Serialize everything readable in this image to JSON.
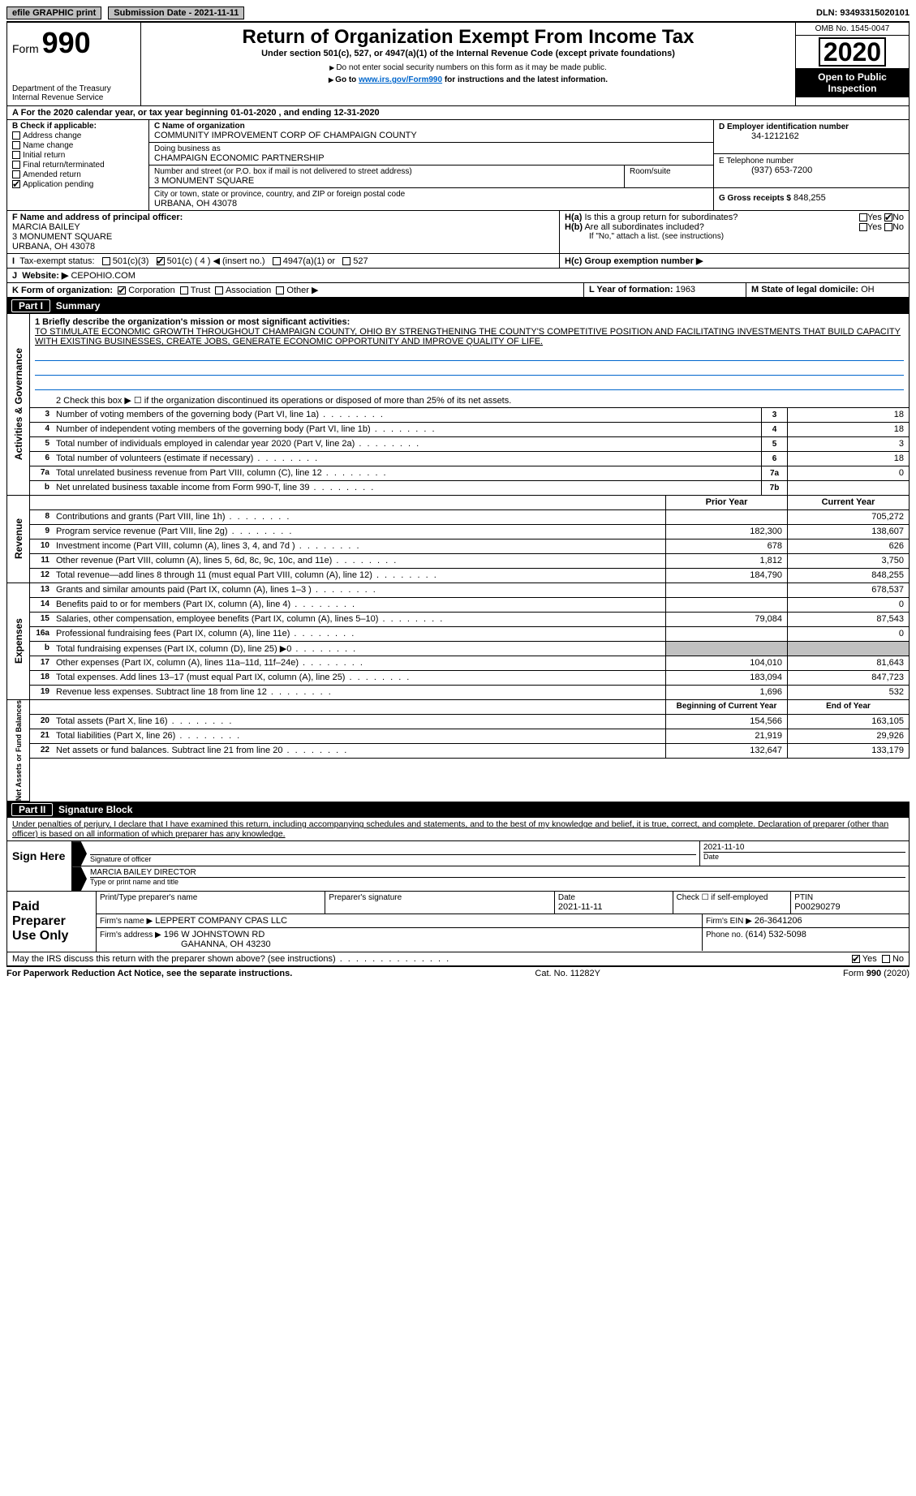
{
  "topbar": {
    "efile_label": "efile GRAPHIC print",
    "submission_label": "Submission Date - 2021-11-11",
    "dln_label": "DLN: 93493315020101"
  },
  "header": {
    "form_label": "Form",
    "form_number": "990",
    "dept": "Department of the Treasury",
    "irs": "Internal Revenue Service",
    "title": "Return of Organization Exempt From Income Tax",
    "subtitle": "Under section 501(c), 527, or 4947(a)(1) of the Internal Revenue Code (except private foundations)",
    "ssn_note": "Do not enter social security numbers on this form as it may be made public.",
    "goto": "Go to ",
    "goto_link": "www.irs.gov/Form990",
    "goto_suffix": " for instructions and the latest information.",
    "omb": "OMB No. 1545-0047",
    "year": "2020",
    "open": "Open to Public Inspection"
  },
  "line_a": {
    "text": "For the 2020 calendar year, or tax year beginning 01-01-2020    , and ending 12-31-2020"
  },
  "box_b": {
    "title": "B Check if applicable:",
    "items": [
      "Address change",
      "Name change",
      "Initial return",
      "Final return/terminated",
      "Amended return",
      "Application pending"
    ],
    "application_checked": true
  },
  "box_c": {
    "label": "C Name of organization",
    "name": "COMMUNITY IMPROVEMENT CORP OF CHAMPAIGN COUNTY",
    "dba_label": "Doing business as",
    "dba": "CHAMPAIGN ECONOMIC PARTNERSHIP",
    "addr_label": "Number and street (or P.O. box if mail is not delivered to street address)",
    "room_label": "Room/suite",
    "addr": "3 MONUMENT SQUARE",
    "city_label": "City or town, state or province, country, and ZIP or foreign postal code",
    "city": "URBANA, OH  43078"
  },
  "box_d": {
    "label": "D Employer identification number",
    "value": "34-1212162"
  },
  "box_e": {
    "label": "E Telephone number",
    "value": "(937) 653-7200"
  },
  "box_g": {
    "label": "G Gross receipts $",
    "value": "848,255"
  },
  "box_f": {
    "label": "F  Name and address of principal officer:",
    "name": "MARCIA BAILEY",
    "addr1": "3 MONUMENT SQUARE",
    "addr2": "URBANA, OH  43078"
  },
  "box_h": {
    "a_label": "H(a)  Is this a group return for subordinates?",
    "b_label": "Are all subordinates included?",
    "attach": "If \"No,\" attach a list. (see instructions)",
    "c_label": "H(c)  Group exemption number ▶",
    "yes": "Yes",
    "no": "No"
  },
  "box_i": {
    "label": "Tax-exempt status:",
    "c3": "501(c)(3)",
    "c": "501(c) ( 4 ) ◀ (insert no.)",
    "c_checked": true,
    "a1": "4947(a)(1) or",
    "s527": "527"
  },
  "box_j": {
    "label": "Website: ▶",
    "value": "CEPOHIO.COM"
  },
  "box_k": {
    "label": "K Form of organization:",
    "corp": "Corporation",
    "trust": "Trust",
    "assoc": "Association",
    "other": "Other ▶",
    "corp_checked": true
  },
  "box_l": {
    "label": "L Year of formation:",
    "value": "1963"
  },
  "box_m": {
    "label": "M State of legal domicile:",
    "value": "OH"
  },
  "part1": {
    "num": "Part I",
    "title": "Summary"
  },
  "summary": {
    "q1_label": "1  Briefly describe the organization's mission or most significant activities:",
    "q1_text": "TO STIMULATE ECONOMIC GROWTH THROUGHOUT CHAMPAIGN COUNTY, OHIO BY STRENGTHENING THE COUNTY'S COMPETITIVE POSITION AND FACILITATING INVESTMENTS THAT BUILD CAPACITY WITH EXISTING BUSINESSES, CREATE JOBS, GENERATE ECONOMIC OPPORTUNITY AND IMPROVE QUALITY OF LIFE.",
    "q2_label": "2   Check this box ▶ ☐ if the organization discontinued its operations or disposed of more than 25% of its net assets.",
    "rows": [
      {
        "n": "3",
        "d": "Number of voting members of the governing body (Part VI, line 1a)",
        "box": "3",
        "cur": "18"
      },
      {
        "n": "4",
        "d": "Number of independent voting members of the governing body (Part VI, line 1b)",
        "box": "4",
        "cur": "18"
      },
      {
        "n": "5",
        "d": "Total number of individuals employed in calendar year 2020 (Part V, line 2a)",
        "box": "5",
        "cur": "3"
      },
      {
        "n": "6",
        "d": "Total number of volunteers (estimate if necessary)",
        "box": "6",
        "cur": "18"
      },
      {
        "n": "7a",
        "d": "Total unrelated business revenue from Part VIII, column (C), line 12",
        "box": "7a",
        "cur": "0"
      },
      {
        "n": "b",
        "d": "Net unrelated business taxable income from Form 990-T, line 39",
        "box": "7b",
        "cur": ""
      }
    ],
    "col_head_prior": "Prior Year",
    "col_head_current": "Current Year",
    "rev_rows": [
      {
        "n": "8",
        "d": "Contributions and grants (Part VIII, line 1h)",
        "p": "",
        "c": "705,272"
      },
      {
        "n": "9",
        "d": "Program service revenue (Part VIII, line 2g)",
        "p": "182,300",
        "c": "138,607"
      },
      {
        "n": "10",
        "d": "Investment income (Part VIII, column (A), lines 3, 4, and 7d )",
        "p": "678",
        "c": "626"
      },
      {
        "n": "11",
        "d": "Other revenue (Part VIII, column (A), lines 5, 6d, 8c, 9c, 10c, and 11e)",
        "p": "1,812",
        "c": "3,750"
      },
      {
        "n": "12",
        "d": "Total revenue—add lines 8 through 11 (must equal Part VIII, column (A), line 12)",
        "p": "184,790",
        "c": "848,255"
      }
    ],
    "exp_rows": [
      {
        "n": "13",
        "d": "Grants and similar amounts paid (Part IX, column (A), lines 1–3 )",
        "p": "",
        "c": "678,537"
      },
      {
        "n": "14",
        "d": "Benefits paid to or for members (Part IX, column (A), line 4)",
        "p": "",
        "c": "0"
      },
      {
        "n": "15",
        "d": "Salaries, other compensation, employee benefits (Part IX, column (A), lines 5–10)",
        "p": "79,084",
        "c": "87,543"
      },
      {
        "n": "16a",
        "d": "Professional fundraising fees (Part IX, column (A), line 11e)",
        "p": "",
        "c": "0"
      },
      {
        "n": "b",
        "d": "Total fundraising expenses (Part IX, column (D), line 25) ▶0",
        "p": "shade",
        "c": "shade"
      },
      {
        "n": "17",
        "d": "Other expenses (Part IX, column (A), lines 11a–11d, 11f–24e)",
        "p": "104,010",
        "c": "81,643"
      },
      {
        "n": "18",
        "d": "Total expenses. Add lines 13–17 (must equal Part IX, column (A), line 25)",
        "p": "183,094",
        "c": "847,723"
      },
      {
        "n": "19",
        "d": "Revenue less expenses. Subtract line 18 from line 12",
        "p": "1,696",
        "c": "532"
      }
    ],
    "net_head_begin": "Beginning of Current Year",
    "net_head_end": "End of Year",
    "net_rows": [
      {
        "n": "20",
        "d": "Total assets (Part X, line 16)",
        "p": "154,566",
        "c": "163,105"
      },
      {
        "n": "21",
        "d": "Total liabilities (Part X, line 26)",
        "p": "21,919",
        "c": "29,926"
      },
      {
        "n": "22",
        "d": "Net assets or fund balances. Subtract line 21 from line 20",
        "p": "132,647",
        "c": "133,179"
      }
    ],
    "side_ag": "Activities & Governance",
    "side_rev": "Revenue",
    "side_exp": "Expenses",
    "side_net": "Net Assets or Fund Balances"
  },
  "part2": {
    "num": "Part II",
    "title": "Signature Block"
  },
  "sig": {
    "perjury": "Under penalties of perjury, I declare that I have examined this return, including accompanying schedules and statements, and to the best of my knowledge and belief, it is true, correct, and complete. Declaration of preparer (other than officer) is based on all information of which preparer has any knowledge.",
    "sign_here": "Sign Here",
    "officer_sig": "Signature of officer",
    "date": "Date",
    "date_val": "2021-11-10",
    "name_title": "Type or print name and title",
    "name_val": "MARCIA BAILEY  DIRECTOR",
    "paid": "Paid Preparer Use Only",
    "print_name": "Print/Type preparer's name",
    "prep_sig": "Preparer's signature",
    "prep_date": "Date",
    "prep_date_val": "2021-11-11",
    "selfemp": "Check ☐ if self-employed",
    "ptin": "PTIN",
    "ptin_val": "P00290279",
    "firm_name": "Firm's name   ▶",
    "firm_name_val": "LEPPERT COMPANY CPAS LLC",
    "firm_ein": "Firm's EIN ▶",
    "firm_ein_val": "26-3641206",
    "firm_addr": "Firm's address ▶",
    "firm_addr_val": "196 W JOHNSTOWN RD",
    "firm_city": "GAHANNA, OH  43230",
    "phone": "Phone no.",
    "phone_val": "(614) 532-5098",
    "discuss": "May the IRS discuss this return with the preparer shown above? (see instructions)",
    "discuss_yes_checked": true
  },
  "footer": {
    "pra": "For Paperwork Reduction Act Notice, see the separate instructions.",
    "cat": "Cat. No. 11282Y",
    "form": "Form 990 (2020)"
  },
  "colors": {
    "link": "#0066cc",
    "shade": "#c0c0c0"
  }
}
